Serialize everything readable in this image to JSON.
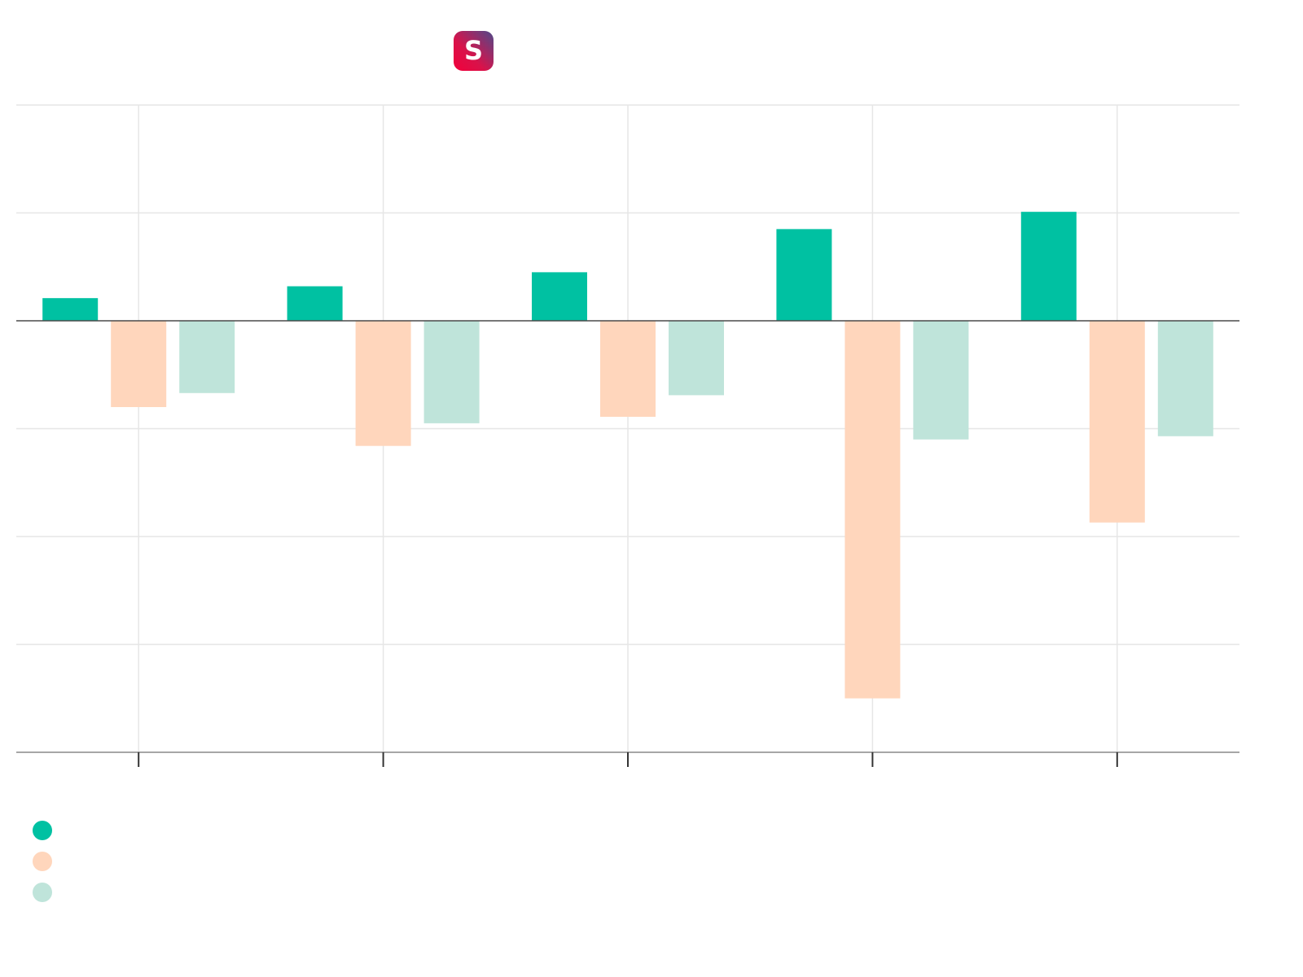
{
  "logo": {
    "letter": "S",
    "name": "s-logo-icon"
  },
  "chart_data": {
    "type": "bar",
    "orientation": "vertical",
    "title": "",
    "xlabel": "",
    "ylabel": "",
    "categories": [
      "",
      "",
      "",
      "",
      ""
    ],
    "series": [
      {
        "name": "",
        "color": "#00c1a2",
        "values": [
          1.05,
          1.6,
          2.25,
          4.25,
          5.05
        ]
      },
      {
        "name": "",
        "color": "#ffd6bc",
        "values": [
          -4.0,
          -5.8,
          -4.45,
          -17.5,
          -9.35
        ]
      },
      {
        "name": "",
        "color": "#bfe4da",
        "values": [
          -3.35,
          -4.75,
          -3.45,
          -5.5,
          -5.35
        ]
      }
    ],
    "ylim": [
      -20,
      10
    ],
    "yticks": [
      10,
      5,
      0,
      -5,
      -10,
      -15,
      -20
    ],
    "grid": true,
    "legend_position": "bottom-left",
    "colors": {
      "grid": "#e6e6e6",
      "axis": "#4a4a4a"
    }
  }
}
